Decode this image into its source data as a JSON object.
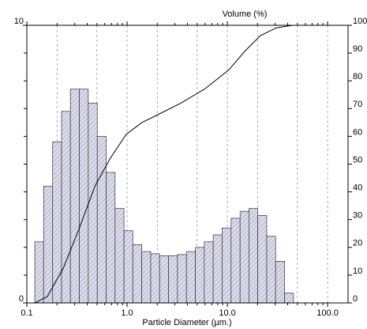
{
  "chart_data": {
    "type": "histogram",
    "x_label": "Particle Diameter (µm.)",
    "y2_label": "Volume (%)",
    "xscale": "log",
    "xlim": [
      0.1,
      160
    ],
    "xticks": [
      {
        "value": 0.1,
        "label": "0.1"
      },
      {
        "value": 1,
        "label": "1.0"
      },
      {
        "value": 10,
        "label": "10.0"
      },
      {
        "value": 100,
        "label": "100.0"
      }
    ],
    "xgrid": [
      0.2,
      0.5,
      1,
      2,
      5,
      10,
      20,
      50,
      100
    ],
    "ylim": [
      0,
      10
    ],
    "yticks": [
      0,
      10
    ],
    "y2lim": [
      0,
      100
    ],
    "y2ticks": [
      0,
      10,
      20,
      30,
      40,
      50,
      60,
      70,
      80,
      90,
      100
    ],
    "bins": [
      0.12,
      0.147,
      0.181,
      0.222,
      0.272,
      0.334,
      0.41,
      0.504,
      0.618,
      0.759,
      0.931,
      1.14,
      1.4,
      1.72,
      2.11,
      2.59,
      3.18,
      3.91,
      4.8,
      5.89,
      7.23,
      8.87,
      10.9,
      13.4,
      16.4,
      20.1,
      24.7,
      30.3,
      37.2,
      45.7
    ],
    "values": [
      2.2,
      4.2,
      5.8,
      6.9,
      7.7,
      7.7,
      7.2,
      6.0,
      4.7,
      3.4,
      2.6,
      2.1,
      1.85,
      1.77,
      1.7,
      1.7,
      1.74,
      1.85,
      2.0,
      2.2,
      2.45,
      2.7,
      3.05,
      3.3,
      3.4,
      3.15,
      2.4,
      1.5,
      0.35
    ],
    "color": "#d8d8ee",
    "series": [
      {
        "type": "line",
        "axis": "y2",
        "color": "#000000",
        "x": [
          0.12,
          0.16,
          0.23,
          0.33,
          0.48,
          0.68,
          0.98,
          1.41,
          2.03,
          3.49,
          6.02,
          10.4,
          14.9,
          21.4,
          30.8,
          44.3,
          160
        ],
        "values": [
          0,
          2.3,
          12.3,
          26.5,
          42.2,
          52.1,
          60.7,
          65.0,
          67.8,
          72.1,
          77.2,
          84.0,
          90.6,
          96.3,
          99.1,
          100,
          100
        ]
      }
    ]
  }
}
